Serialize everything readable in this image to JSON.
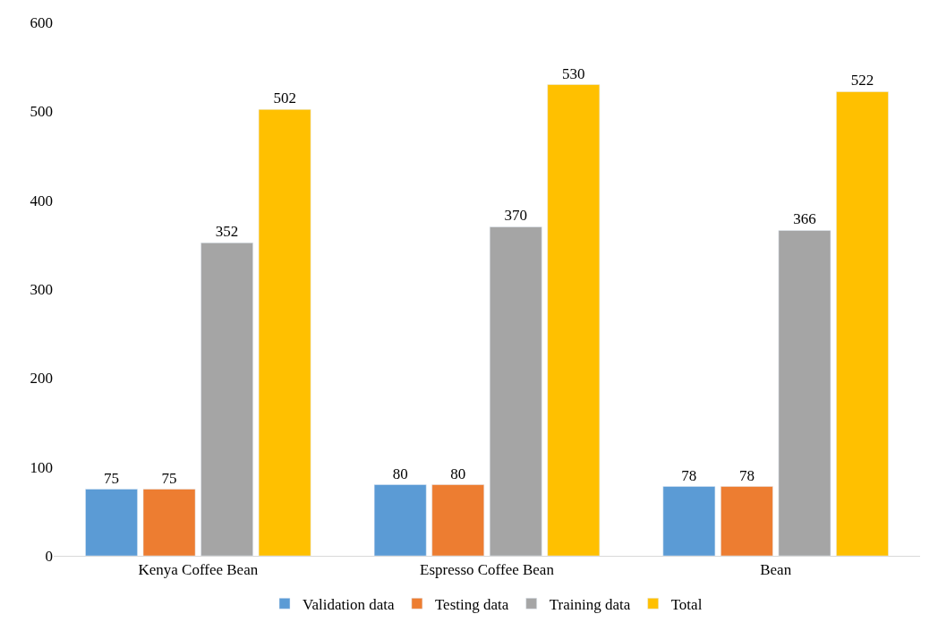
{
  "chart_data": {
    "type": "bar",
    "categories": [
      "Kenya Coffee Bean",
      "Espresso Coffee Bean",
      "Bean"
    ],
    "series": [
      {
        "name": "Validation data",
        "color": "#5b9bd5",
        "values": [
          75,
          80,
          78
        ]
      },
      {
        "name": "Testing data",
        "color": "#ed7d31",
        "values": [
          75,
          80,
          78
        ]
      },
      {
        "name": "Training data",
        "color": "#a5a5a5",
        "values": [
          352,
          370,
          366
        ]
      },
      {
        "name": "Total",
        "color": "#ffc000",
        "values": [
          502,
          530,
          522
        ]
      }
    ],
    "ylim": [
      0,
      600
    ],
    "yticks": [
      0,
      100,
      200,
      300,
      400,
      500,
      600
    ],
    "data_labels": true,
    "legend": "bottom",
    "grid": false
  }
}
